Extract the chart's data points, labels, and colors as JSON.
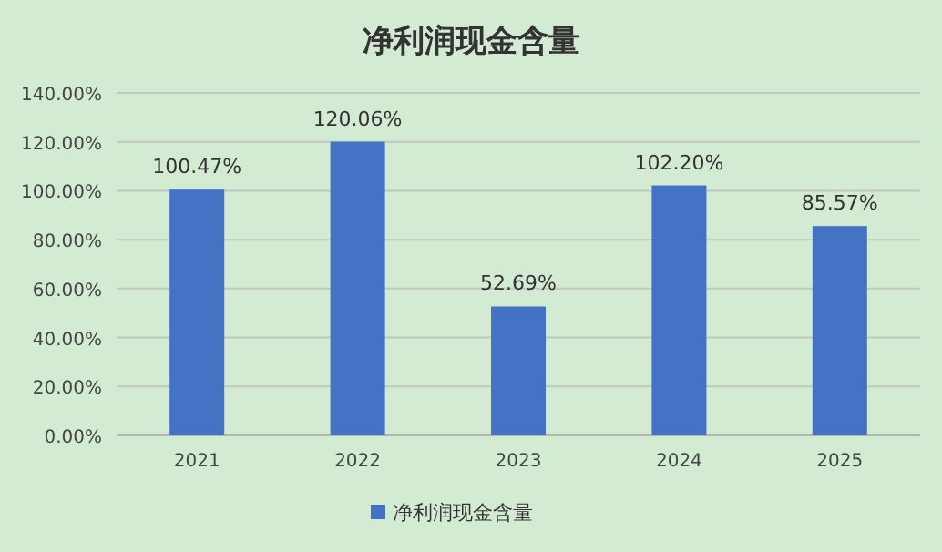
{
  "chart_data": {
    "type": "bar",
    "title": "净利润现金含量",
    "categories": [
      "2021",
      "2022",
      "2023",
      "2024",
      "2025"
    ],
    "series": [
      {
        "name": "净利润现金含量",
        "color": "#4472c4",
        "values": [
          100.47,
          120.06,
          52.69,
          102.2,
          85.57
        ],
        "value_labels": [
          "100.47%",
          "120.06%",
          "52.69%",
          "102.20%",
          "85.57%"
        ]
      }
    ],
    "ylim": [
      0,
      140
    ],
    "yticks": [
      {
        "value": 0,
        "label": "0.00%"
      },
      {
        "value": 20,
        "label": "20.00%"
      },
      {
        "value": 40,
        "label": "40.00%"
      },
      {
        "value": 60,
        "label": "60.00%"
      },
      {
        "value": 80,
        "label": "80.00%"
      },
      {
        "value": 100,
        "label": "100.00%"
      },
      {
        "value": 120,
        "label": "120.00%"
      },
      {
        "value": 140,
        "label": "140.00%"
      }
    ],
    "grid": "y",
    "legend": "bottom"
  }
}
